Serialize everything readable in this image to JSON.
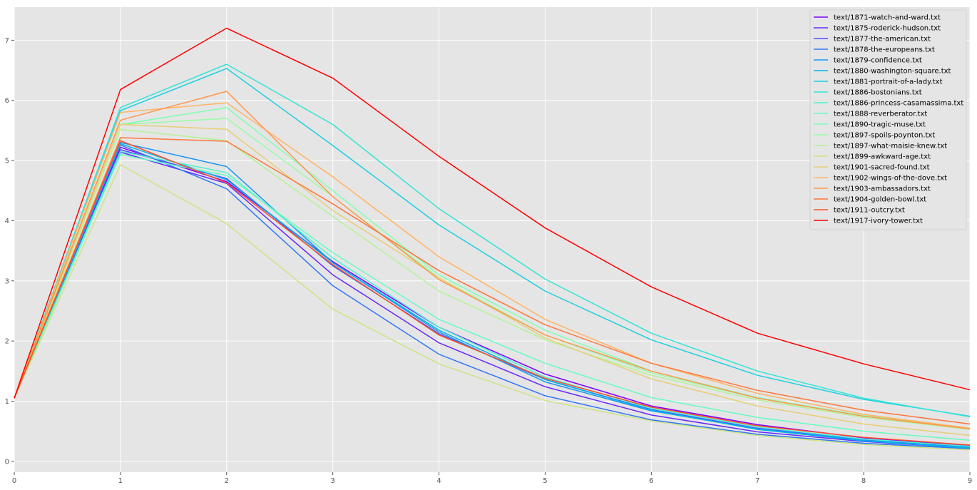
{
  "chart_data": {
    "type": "line",
    "title": "",
    "xlabel": "",
    "ylabel": "",
    "x": [
      0,
      1,
      2,
      3,
      4,
      5,
      6,
      7,
      8,
      9
    ],
    "xlim": [
      0,
      9
    ],
    "ylim": [
      -0.18,
      7.55
    ],
    "xticks": [
      "0",
      "1",
      "2",
      "3",
      "4",
      "5",
      "6",
      "7",
      "8",
      "9"
    ],
    "yticks": [
      "0",
      "1",
      "2",
      "3",
      "4",
      "5",
      "6",
      "7"
    ],
    "grid": true,
    "legend_position": "top-right",
    "style": "ggplot",
    "series": [
      {
        "name": "text/1871-watch-and-ward.txt",
        "color": "#8000ff",
        "values": [
          1.05,
          5.22,
          4.65,
          3.32,
          2.23,
          1.45,
          0.92,
          0.61,
          0.39,
          0.26
        ]
      },
      {
        "name": "text/1875-roderick-hudson.txt",
        "color": "#6629fe",
        "values": [
          1.05,
          5.14,
          4.62,
          3.1,
          1.97,
          1.24,
          0.77,
          0.49,
          0.33,
          0.22
        ]
      },
      {
        "name": "text/1877-the-american.txt",
        "color": "#4c50fc",
        "values": [
          1.05,
          5.18,
          4.7,
          3.25,
          2.12,
          1.36,
          0.86,
          0.55,
          0.36,
          0.24
        ]
      },
      {
        "name": "text/1878-the-europeans.txt",
        "color": "#3176f8",
        "values": [
          1.05,
          5.26,
          4.53,
          2.92,
          1.78,
          1.09,
          0.69,
          0.45,
          0.3,
          0.21
        ]
      },
      {
        "name": "text/1879-confidence.txt",
        "color": "#1996f3",
        "values": [
          1.05,
          5.3,
          4.9,
          3.3,
          2.15,
          1.32,
          0.84,
          0.54,
          0.35,
          0.23
        ]
      },
      {
        "name": "text/1880-washington-square.txt",
        "color": "#00b5eb",
        "values": [
          1.05,
          5.28,
          4.68,
          3.3,
          2.18,
          1.36,
          0.85,
          0.53,
          0.34,
          0.22
        ]
      },
      {
        "name": "text/1881-portrait-of-a-lady.txt",
        "color": "#1acfe2",
        "values": [
          1.05,
          5.83,
          6.53,
          5.25,
          3.93,
          2.83,
          2.02,
          1.43,
          1.03,
          0.75
        ]
      },
      {
        "name": "text/1886-bostonians.txt",
        "color": "#33e4d7",
        "values": [
          1.05,
          5.88,
          6.6,
          5.6,
          4.2,
          3.03,
          2.13,
          1.5,
          1.05,
          0.74
        ]
      },
      {
        "name": "text/1886-princess-casamassima.txt",
        "color": "#4df3ce",
        "values": [
          1.05,
          5.15,
          4.8,
          3.38,
          2.23,
          1.4,
          0.88,
          0.57,
          0.37,
          0.25
        ]
      },
      {
        "name": "text/1888-reverberator.txt",
        "color": "#66fcc2",
        "values": [
          1.05,
          5.1,
          4.75,
          3.47,
          2.36,
          1.63,
          1.06,
          0.73,
          0.5,
          0.35
        ]
      },
      {
        "name": "text/1890-tragic-muse.txt",
        "color": "#80ffb4",
        "values": [
          1.05,
          5.6,
          5.88,
          4.5,
          3.1,
          2.18,
          1.5,
          1.06,
          0.76,
          0.55
        ]
      },
      {
        "name": "text/1897-spoils-poynton.txt",
        "color": "#99fca5",
        "values": [
          1.05,
          5.6,
          5.7,
          4.4,
          3.05,
          2.1,
          1.47,
          1.05,
          0.75,
          0.54
        ]
      },
      {
        "name": "text/1897-what-maisie-knew.txt",
        "color": "#b3f396",
        "values": [
          1.05,
          5.52,
          5.33,
          4.07,
          2.83,
          2.02,
          1.43,
          1.02,
          0.73,
          0.53
        ]
      },
      {
        "name": "text/1899-awkward-age.txt",
        "color": "#cce485",
        "values": [
          1.05,
          4.93,
          3.95,
          2.53,
          1.62,
          1.01,
          0.67,
          0.43,
          0.28,
          0.19
        ]
      },
      {
        "name": "text/1901-sacred-found.txt",
        "color": "#e6cf74",
        "values": [
          1.05,
          5.6,
          5.52,
          4.17,
          3.05,
          2.05,
          1.37,
          0.92,
          0.62,
          0.43
        ]
      },
      {
        "name": "text/1902-wings-of-the-dove.txt",
        "color": "#ffb462",
        "values": [
          1.05,
          5.8,
          5.96,
          4.73,
          3.4,
          2.36,
          1.63,
          1.13,
          0.78,
          0.55
        ]
      },
      {
        "name": "text/1903-ambassadors.txt",
        "color": "#ff964f",
        "values": [
          1.05,
          5.67,
          6.15,
          4.4,
          3.02,
          2.1,
          1.5,
          1.05,
          0.75,
          0.54
        ]
      },
      {
        "name": "text/1904-golden-bowl.txt",
        "color": "#ff763b",
        "values": [
          1.05,
          5.38,
          5.32,
          4.28,
          3.17,
          2.27,
          1.63,
          1.18,
          0.85,
          0.62
        ]
      },
      {
        "name": "text/1911-outcry.txt",
        "color": "#ff5027",
        "values": [
          1.05,
          5.33,
          4.63,
          3.27,
          2.1,
          1.38,
          0.9,
          0.59,
          0.4,
          0.27
        ]
      },
      {
        "name": "text/1917-ivory-tower.txt",
        "color": "#ff0000",
        "values": [
          1.05,
          6.18,
          7.2,
          6.37,
          5.07,
          3.88,
          2.9,
          2.13,
          1.62,
          1.19
        ]
      }
    ]
  }
}
